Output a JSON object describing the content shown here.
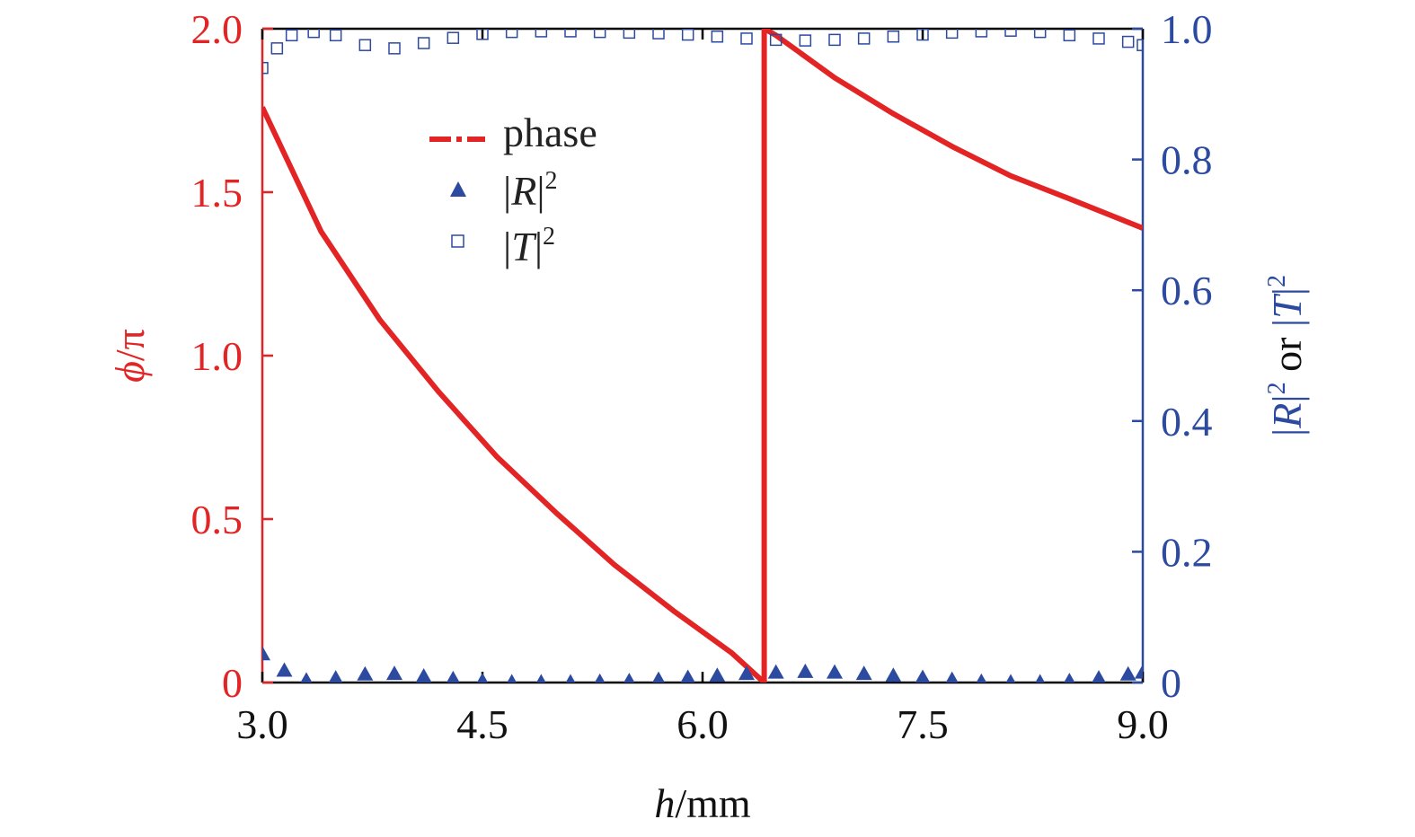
{
  "colors": {
    "phase": "#e32425",
    "reflect": "#2b4aa0",
    "transmit": "#2b4aa0",
    "frame": "#000000",
    "left_axis": "#e32425",
    "right_axis": "#2b4aa0"
  },
  "chart_data": {
    "type": "line",
    "xlabel_italic": "h",
    "xlabel_rest": "/mm",
    "ylabel_left_phi": "ϕ",
    "ylabel_left_rest": "/π",
    "ylabel_right_parts": [
      "|",
      "R",
      "|",
      "2",
      " or ",
      "|",
      "T",
      "|",
      "2"
    ],
    "xlim": [
      3.0,
      9.0
    ],
    "ylim_left": [
      0,
      2.0
    ],
    "ylim_right": [
      0,
      1.0
    ],
    "x_ticks": [
      "3.0",
      "4.5",
      "6.0",
      "7.5",
      "9.0"
    ],
    "x_tick_values": [
      3.0,
      4.5,
      6.0,
      7.5,
      9.0
    ],
    "y_left_ticks": [
      "0",
      "0.5",
      "1.0",
      "1.5",
      "2.0"
    ],
    "y_left_tick_values": [
      0,
      0.5,
      1.0,
      1.5,
      2.0
    ],
    "y_right_ticks": [
      "0",
      "0.2",
      "0.4",
      "0.6",
      "0.8",
      "1.0"
    ],
    "y_right_tick_values": [
      0,
      0.2,
      0.4,
      0.6,
      0.8,
      1.0
    ],
    "legend": {
      "placement": "upper-left-inside",
      "entries": [
        {
          "key": "phase",
          "label": "phase",
          "marker": "dash-dot-line"
        },
        {
          "key": "reflect",
          "label_bar1": "|",
          "label_sym": "R",
          "label_bar2": "|",
          "label_exp": "2",
          "marker": "filled-triangle"
        },
        {
          "key": "transmit",
          "label_bar1": "|",
          "label_sym": "T",
          "label_bar2": "|",
          "label_exp": "2",
          "marker": "open-square"
        }
      ]
    },
    "series": [
      {
        "key": "phase",
        "axis": "left",
        "x": [
          3.0,
          3.4,
          3.8,
          4.2,
          4.6,
          5.0,
          5.4,
          5.8,
          6.2,
          6.42,
          6.42,
          6.5,
          6.9,
          7.3,
          7.7,
          8.1,
          8.5,
          9.0
        ],
        "y": [
          1.76,
          1.38,
          1.11,
          0.89,
          0.69,
          0.52,
          0.36,
          0.22,
          0.09,
          0.0,
          2.0,
          1.98,
          1.85,
          1.74,
          1.64,
          1.55,
          1.48,
          1.39
        ]
      },
      {
        "key": "reflect",
        "axis": "right",
        "x": [
          3.0,
          3.15,
          3.3,
          3.5,
          3.7,
          3.9,
          4.1,
          4.3,
          4.5,
          4.7,
          4.9,
          5.1,
          5.3,
          5.5,
          5.7,
          5.9,
          6.1,
          6.3,
          6.5,
          6.7,
          6.9,
          7.1,
          7.3,
          7.5,
          7.7,
          7.9,
          8.1,
          8.3,
          8.5,
          8.7,
          8.9,
          9.0
        ],
        "y": [
          0.045,
          0.02,
          0.005,
          0.008,
          0.014,
          0.015,
          0.011,
          0.007,
          0.004,
          0.002,
          0.002,
          0.002,
          0.003,
          0.004,
          0.006,
          0.009,
          0.012,
          0.015,
          0.017,
          0.018,
          0.017,
          0.015,
          0.012,
          0.009,
          0.006,
          0.003,
          0.002,
          0.002,
          0.004,
          0.008,
          0.014,
          0.017
        ]
      },
      {
        "key": "transmit",
        "axis": "right",
        "x": [
          3.0,
          3.1,
          3.2,
          3.35,
          3.5,
          3.7,
          3.9,
          4.1,
          4.3,
          4.5,
          4.7,
          4.9,
          5.1,
          5.3,
          5.5,
          5.7,
          5.9,
          6.1,
          6.3,
          6.5,
          6.7,
          6.9,
          7.1,
          7.3,
          7.5,
          7.7,
          7.9,
          8.1,
          8.3,
          8.5,
          8.7,
          8.9,
          9.0
        ],
        "y": [
          0.94,
          0.97,
          0.99,
          0.995,
          0.99,
          0.975,
          0.97,
          0.978,
          0.986,
          0.992,
          0.995,
          0.996,
          0.996,
          0.995,
          0.994,
          0.993,
          0.991,
          0.988,
          0.985,
          0.983,
          0.982,
          0.983,
          0.985,
          0.988,
          0.991,
          0.994,
          0.996,
          0.997,
          0.995,
          0.99,
          0.985,
          0.98,
          0.975
        ]
      }
    ]
  }
}
